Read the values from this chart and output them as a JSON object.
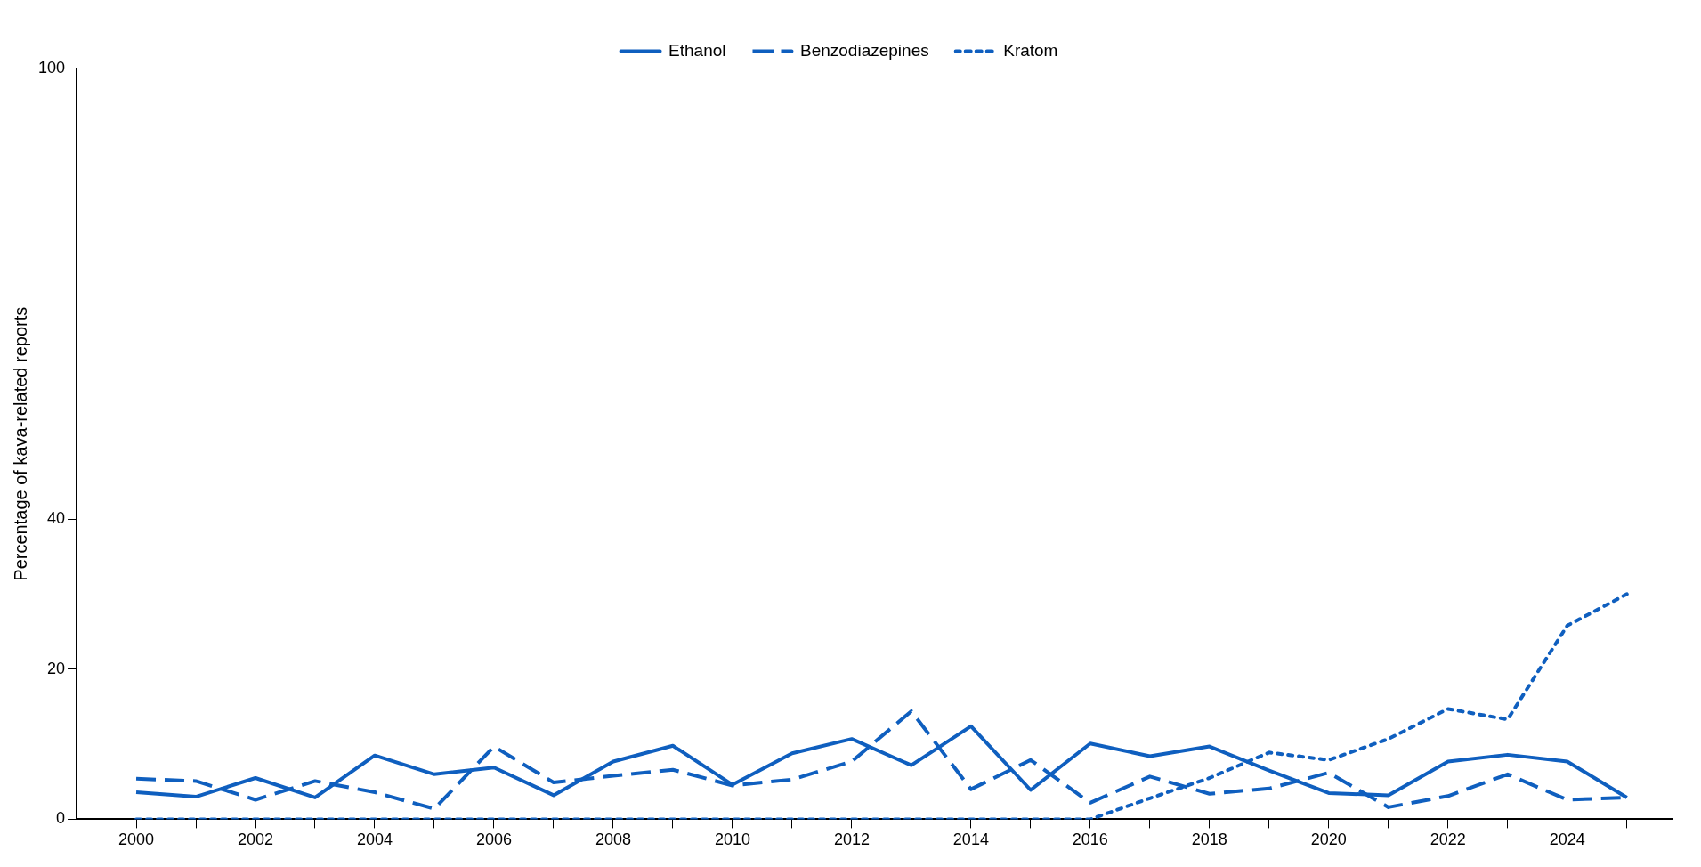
{
  "chart_data": {
    "type": "line",
    "ylabel": "Percentage of kava-related reports",
    "x": [
      2000,
      2001,
      2002,
      2003,
      2004,
      2005,
      2006,
      2007,
      2008,
      2009,
      2010,
      2011,
      2012,
      2013,
      2014,
      2015,
      2016,
      2017,
      2018,
      2019,
      2020,
      2021,
      2022,
      2023,
      2024,
      2025
    ],
    "xlim": [
      1999,
      2025.75
    ],
    "xticks": [
      2000,
      {
        "value": 2001,
        "label": null
      },
      2002,
      {
        "value": 2003,
        "label": null
      },
      2004,
      {
        "value": 2005,
        "label": null
      },
      2006,
      {
        "value": 2007,
        "label": null
      },
      2008,
      {
        "value": 2009,
        "label": null
      },
      2010,
      {
        "value": 2011,
        "label": null
      },
      2012,
      {
        "value": 2013,
        "label": null
      },
      2014,
      {
        "value": 2015,
        "label": null
      },
      2016,
      {
        "value": 2017,
        "label": null
      },
      2018,
      {
        "value": 2019,
        "label": null
      },
      2020,
      {
        "value": 2021,
        "label": null
      },
      2022,
      {
        "value": 2023,
        "label": null
      },
      2024,
      {
        "value": 2025,
        "label": null
      }
    ],
    "ylim": [
      0,
      100
    ],
    "yticks": [
      0,
      20,
      40,
      100
    ],
    "grid": false,
    "legend": "top",
    "marker": "none",
    "series": [
      {
        "name": "Ethanol",
        "color": "#0f5fbf",
        "line_style": "solid",
        "values": [
          3.6,
          3.0,
          5.5,
          2.9,
          8.5,
          6.0,
          6.9,
          3.2,
          7.7,
          9.8,
          4.6,
          8.8,
          10.7,
          7.2,
          12.4,
          3.9,
          10.1,
          8.4,
          9.7,
          6.5,
          3.5,
          3.2,
          7.7,
          8.6,
          7.7,
          2.9
        ]
      },
      {
        "name": "Benzodiazepines",
        "color": "#0f5fbf",
        "line_style": "dashed",
        "values": [
          5.4,
          5.1,
          2.6,
          5.1,
          3.6,
          1.4,
          9.7,
          4.9,
          5.8,
          6.6,
          4.5,
          5.3,
          7.7,
          14.4,
          4.0,
          7.9,
          2.2,
          5.7,
          3.4,
          4.1,
          6.2,
          1.6,
          3.1,
          6.0,
          2.6,
          2.9
        ]
      },
      {
        "name": "Kratom",
        "color": "#0f5fbf",
        "line_style": "dotted",
        "values": [
          0,
          0,
          0,
          0,
          0,
          0,
          0,
          0,
          0,
          0,
          0,
          0,
          0,
          0,
          0,
          0,
          0,
          2.8,
          5.5,
          8.9,
          7.9,
          10.7,
          14.7,
          13.3,
          25.8,
          30.0
        ]
      }
    ]
  }
}
